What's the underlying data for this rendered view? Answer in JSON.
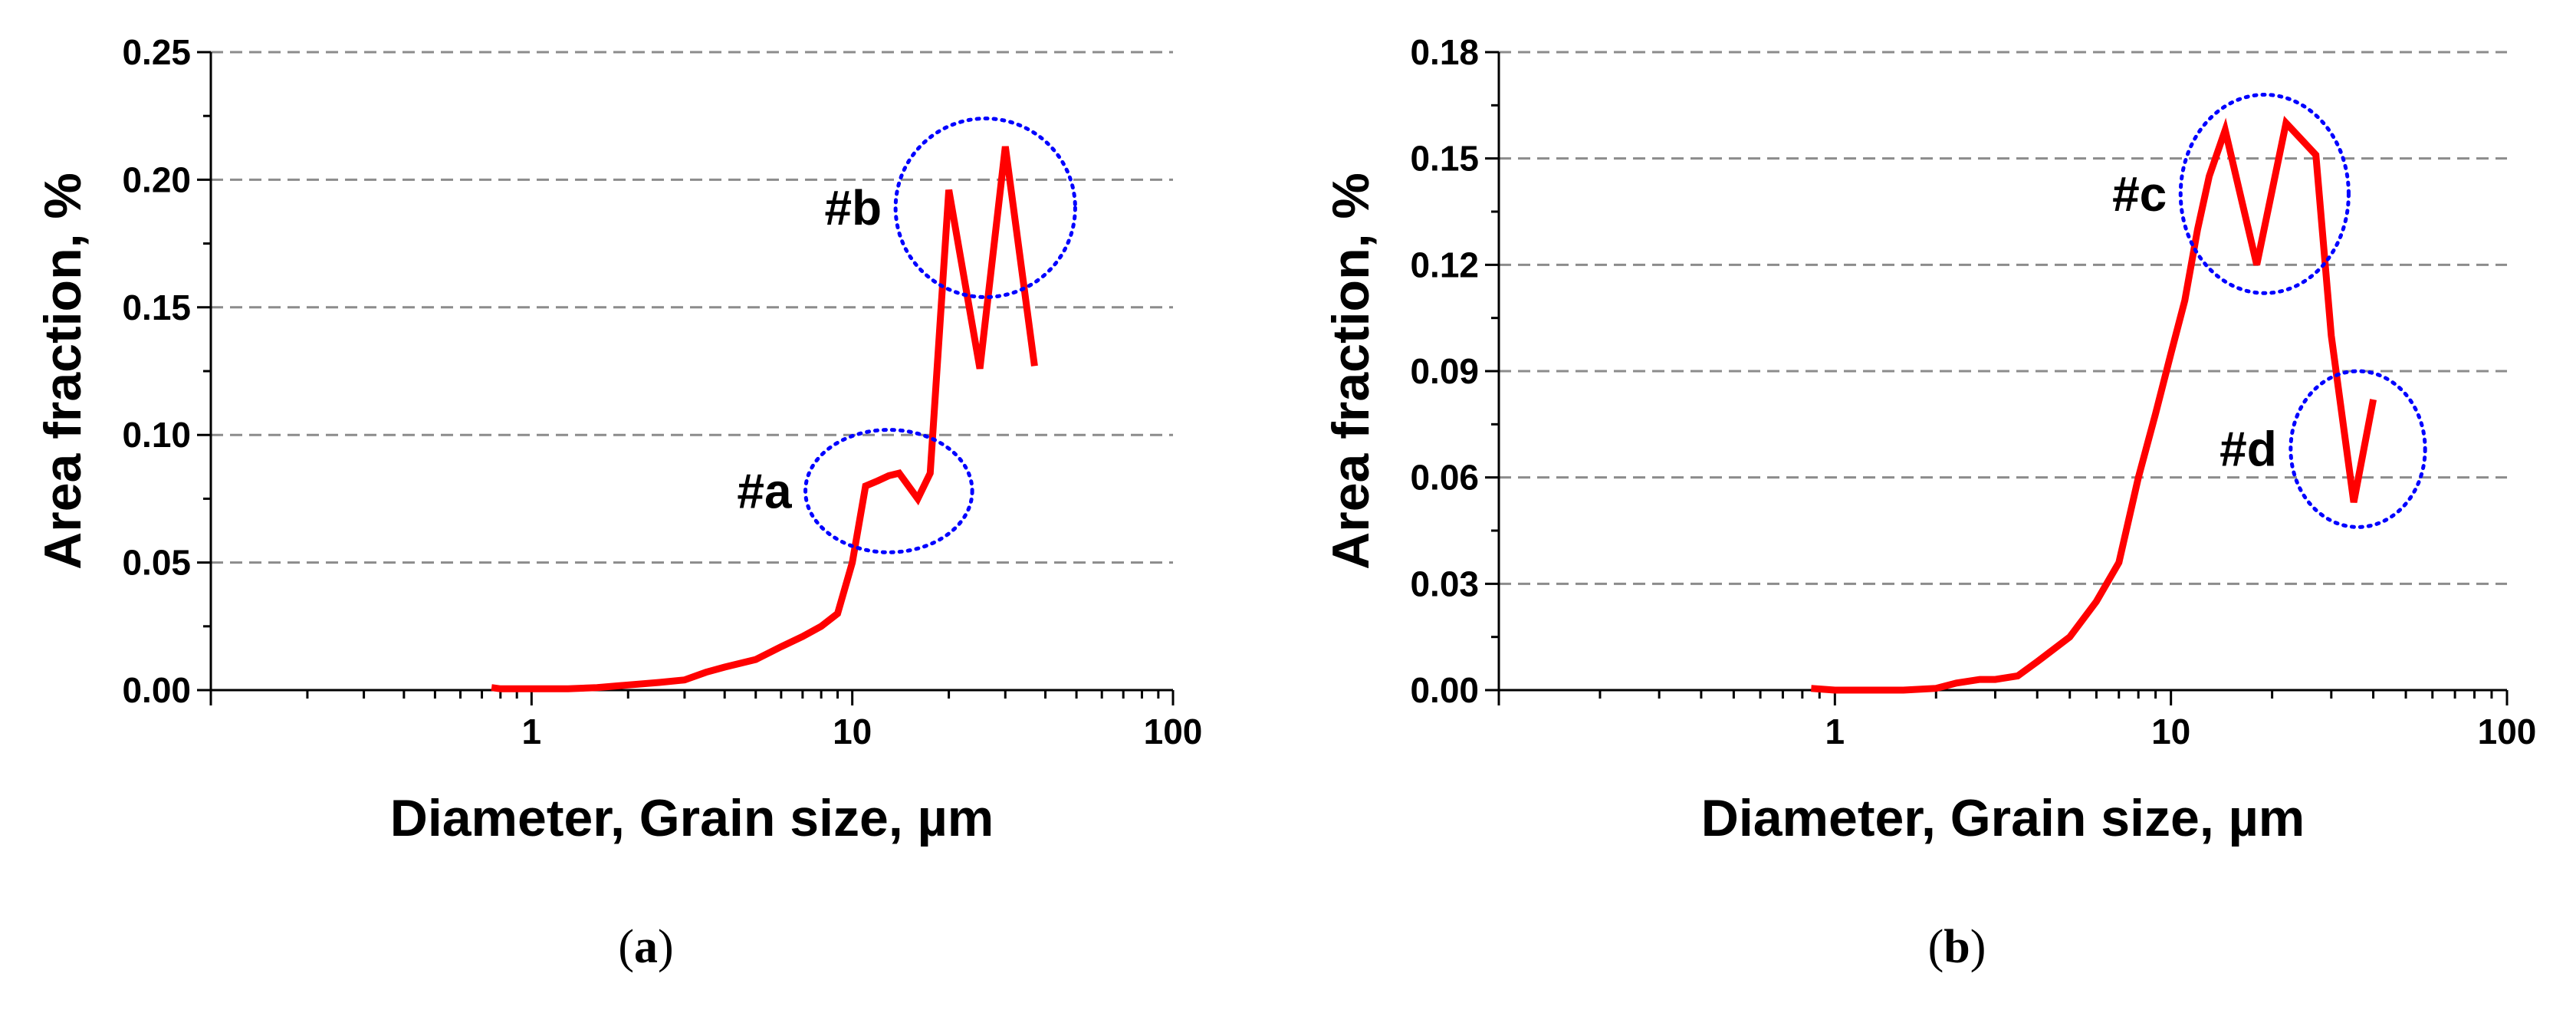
{
  "chart_data": [
    {
      "panel": "(a)",
      "panel_open": "(",
      "panel_letter": "a",
      "panel_close": ")",
      "type": "line",
      "title": "",
      "xlabel": "Diameter, Grain size, µm",
      "ylabel": "Area fraction, %",
      "xscale": "log",
      "xlim": [
        0.1,
        100
      ],
      "ylim": [
        0,
        0.25
      ],
      "xticks": [
        {
          "value": 1,
          "label": "1"
        },
        {
          "value": 10,
          "label": "10"
        },
        {
          "value": 100,
          "label": "100"
        }
      ],
      "yticks": [
        {
          "value": 0.0,
          "label": "0.00"
        },
        {
          "value": 0.05,
          "label": "0.05"
        },
        {
          "value": 0.1,
          "label": "0.10"
        },
        {
          "value": 0.15,
          "label": "0.15"
        },
        {
          "value": 0.2,
          "label": "0.20"
        },
        {
          "value": 0.25,
          "label": "0.25"
        }
      ],
      "grid": "horizontal-dashed",
      "series": [
        {
          "color": "#ff0000",
          "x": [
            0.75,
            0.8,
            1.0,
            1.3,
            1.6,
            2.0,
            2.5,
            3.0,
            3.5,
            4.0,
            5.0,
            6.0,
            7.0,
            8.0,
            9.0,
            10.0,
            11.0,
            12.0,
            13.0,
            14.0,
            16.0,
            17.5,
            20.0,
            25.0,
            30.0,
            37.0
          ],
          "y": [
            0.001,
            0.0005,
            0.0005,
            0.0005,
            0.001,
            0.002,
            0.003,
            0.004,
            0.007,
            0.009,
            0.012,
            0.017,
            0.021,
            0.025,
            0.03,
            0.05,
            0.08,
            0.082,
            0.084,
            0.085,
            0.075,
            0.085,
            0.196,
            0.126,
            0.213,
            0.127
          ]
        }
      ],
      "annotations": [
        {
          "label": "#a",
          "x": 13,
          "y": 0.078,
          "rx_decades": 0.26,
          "ry": 0.024,
          "color": "#0000ff"
        },
        {
          "label": "#b",
          "x": 26,
          "y": 0.189,
          "rx_decades": 0.28,
          "ry": 0.035,
          "color": "#0000ff"
        }
      ]
    },
    {
      "panel": "(b)",
      "panel_open": "(",
      "panel_letter": "b",
      "panel_close": ")",
      "type": "line",
      "title": "",
      "xlabel": "Diameter, Grain size, µm",
      "ylabel": "Area fraction, %",
      "xscale": "log",
      "xlim": [
        0.1,
        100
      ],
      "ylim": [
        0,
        0.18
      ],
      "xticks": [
        {
          "value": 1,
          "label": "1"
        },
        {
          "value": 10,
          "label": "10"
        },
        {
          "value": 100,
          "label": "100"
        }
      ],
      "yticks": [
        {
          "value": 0.0,
          "label": "0.00"
        },
        {
          "value": 0.03,
          "label": "0.03"
        },
        {
          "value": 0.06,
          "label": "0.06"
        },
        {
          "value": 0.09,
          "label": "0.09"
        },
        {
          "value": 0.12,
          "label": "0.12"
        },
        {
          "value": 0.15,
          "label": "0.15"
        },
        {
          "value": 0.18,
          "label": "0.18"
        }
      ],
      "grid": "horizontal-dashed",
      "series": [
        {
          "color": "#ff0000",
          "x": [
            0.85,
            1.0,
            1.3,
            1.6,
            2.0,
            2.3,
            2.7,
            3.0,
            3.5,
            4.0,
            5.0,
            6.0,
            7.0,
            8.0,
            9.0,
            10.0,
            11.0,
            12.0,
            13.0,
            14.5,
            18.0,
            22.0,
            27.0,
            30.0,
            35.0,
            40.0
          ],
          "y": [
            0.0005,
            0.0,
            0.0,
            0.0,
            0.0005,
            0.002,
            0.003,
            0.003,
            0.004,
            0.008,
            0.015,
            0.025,
            0.036,
            0.06,
            0.078,
            0.095,
            0.11,
            0.13,
            0.145,
            0.158,
            0.12,
            0.16,
            0.151,
            0.1,
            0.053,
            0.082
          ]
        }
      ],
      "annotations": [
        {
          "label": "#c",
          "x": 19,
          "y": 0.14,
          "rx_decades": 0.25,
          "ry": 0.028,
          "color": "#0000ff"
        },
        {
          "label": "#d",
          "x": 36,
          "y": 0.068,
          "rx_decades": 0.2,
          "ry": 0.022,
          "color": "#0000ff"
        }
      ]
    }
  ]
}
